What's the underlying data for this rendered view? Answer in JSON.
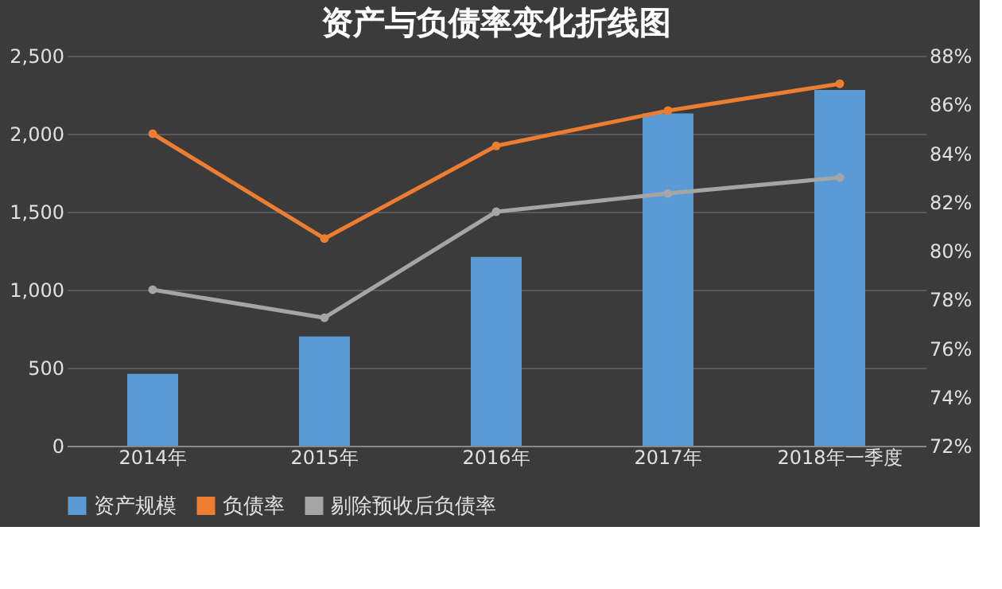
{
  "chart_data": {
    "type": "bar",
    "title": "资产与负债率变化折线图",
    "categories": [
      "2014年",
      "2015年",
      "2016年",
      "2017年",
      "2018年一季度"
    ],
    "series": [
      {
        "name": "资产规模",
        "color": "#5b9bd5",
        "values": [
          460,
          700,
          1210,
          2130,
          2280
        ]
      },
      {
        "name": "负债率",
        "type": "line",
        "axis": "y2",
        "color": "#ed7d31",
        "values": [
          84.8,
          80.5,
          84.3,
          85.75,
          86.85
        ]
      },
      {
        "name": "剔除预收后负债率",
        "type": "line",
        "axis": "y2",
        "color": "#a5a5a5",
        "values": [
          78.4,
          77.25,
          81.6,
          82.35,
          83.0
        ]
      }
    ],
    "ylim": [
      0,
      2500
    ],
    "yticks": [
      0,
      {
        "value": 500,
        "label": "500"
      },
      {
        "value": 1000,
        "label": "1,000"
      },
      {
        "value": 1500,
        "label": "1,500"
      },
      {
        "value": 2000,
        "label": "2,000"
      },
      {
        "value": 2500,
        "label": "2,500"
      }
    ],
    "y2lim": [
      72,
      88
    ],
    "y2ticks": [
      {
        "value": 72,
        "label": "72%"
      },
      {
        "value": 74,
        "label": "74%"
      },
      {
        "value": 76,
        "label": "76%"
      },
      {
        "value": 78,
        "label": "78%"
      },
      {
        "value": 80,
        "label": "80%"
      },
      {
        "value": 82,
        "label": "82%"
      },
      {
        "value": 84,
        "label": "84%"
      },
      {
        "value": 86,
        "label": "86%"
      },
      {
        "value": 88,
        "label": "88%"
      }
    ],
    "grid": "y",
    "legend": "bottom",
    "marker": "circle"
  }
}
